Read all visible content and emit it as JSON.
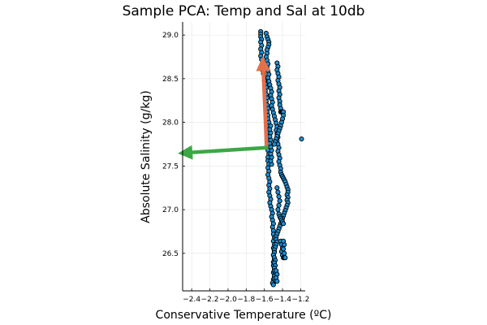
{
  "chart_data": {
    "type": "scatter",
    "title": "Sample PCA: Temp and Sal at 10db",
    "xlabel": "Conservative Temperature (ºC)",
    "ylabel": "Absolute Salinity (g/kg)",
    "xlim": [
      -2.5,
      -1.15
    ],
    "ylim": [
      26.07,
      29.15
    ],
    "xticks": [
      -2.4,
      -2.2,
      -2.0,
      -1.8,
      -1.6,
      -1.4,
      -1.2
    ],
    "xtick_labels": [
      "−2.4",
      "−2.2",
      "−2.0",
      "−1.8",
      "−1.6",
      "−1.4",
      "−1.2"
    ],
    "yticks": [
      26.5,
      27.0,
      27.5,
      28.0,
      28.5,
      29.0
    ],
    "ytick_labels": [
      "26.5",
      "27.0",
      "27.5",
      "28.0",
      "28.5",
      "29.0"
    ],
    "grid": true,
    "legend": false,
    "colors": {
      "points": "#1f8fd6",
      "pc1": "#e2704a",
      "pc2": "#3ca745",
      "grid": "#e6e6e6"
    },
    "points": [
      [
        -1.64,
        29.04
      ],
      [
        -1.64,
        29.01
      ],
      [
        -1.64,
        28.98
      ],
      [
        -1.63,
        28.95
      ],
      [
        -1.64,
        28.92
      ],
      [
        -1.63,
        28.88
      ],
      [
        -1.64,
        28.84
      ],
      [
        -1.63,
        28.8
      ],
      [
        -1.64,
        28.76
      ],
      [
        -1.63,
        28.72
      ],
      [
        -1.62,
        28.68
      ],
      [
        -1.63,
        28.64
      ],
      [
        -1.62,
        28.6
      ],
      [
        -1.61,
        28.56
      ],
      [
        -1.6,
        28.52
      ],
      [
        -1.6,
        28.48
      ],
      [
        -1.59,
        28.44
      ],
      [
        -1.58,
        28.4
      ],
      [
        -1.59,
        28.36
      ],
      [
        -1.58,
        28.32
      ],
      [
        -1.57,
        28.28
      ],
      [
        -1.58,
        28.24
      ],
      [
        -1.57,
        28.2
      ],
      [
        -1.56,
        28.16
      ],
      [
        -1.57,
        28.12
      ],
      [
        -1.56,
        28.08
      ],
      [
        -1.56,
        28.04
      ],
      [
        -1.55,
        28.0
      ],
      [
        -1.56,
        27.96
      ],
      [
        -1.55,
        27.92
      ],
      [
        -1.55,
        27.88
      ],
      [
        -1.56,
        27.84
      ],
      [
        -1.55,
        27.8
      ],
      [
        -1.56,
        27.76
      ],
      [
        -1.55,
        27.72
      ],
      [
        -1.56,
        27.68
      ],
      [
        -1.55,
        27.64
      ],
      [
        -1.56,
        27.6
      ],
      [
        -1.56,
        27.56
      ],
      [
        -1.55,
        27.52
      ],
      [
        -1.56,
        27.48
      ],
      [
        -1.55,
        27.44
      ],
      [
        -1.56,
        27.4
      ],
      [
        -1.55,
        27.36
      ],
      [
        -1.54,
        27.32
      ],
      [
        -1.55,
        27.28
      ],
      [
        -1.54,
        27.24
      ],
      [
        -1.55,
        27.2
      ],
      [
        -1.54,
        27.16
      ],
      [
        -1.53,
        27.12
      ],
      [
        -1.54,
        27.08
      ],
      [
        -1.53,
        27.04
      ],
      [
        -1.52,
        27.0
      ],
      [
        -1.51,
        26.96
      ],
      [
        -1.52,
        26.92
      ],
      [
        -1.51,
        26.88
      ],
      [
        -1.5,
        26.84
      ],
      [
        -1.51,
        26.8
      ],
      [
        -1.5,
        26.76
      ],
      [
        -1.5,
        26.72
      ],
      [
        -1.49,
        26.68
      ],
      [
        -1.5,
        26.64
      ],
      [
        -1.49,
        26.6
      ],
      [
        -1.5,
        26.56
      ],
      [
        -1.49,
        26.52
      ],
      [
        -1.5,
        26.48
      ],
      [
        -1.49,
        26.44
      ],
      [
        -1.5,
        26.4
      ],
      [
        -1.5,
        26.36
      ],
      [
        -1.49,
        26.32
      ],
      [
        -1.5,
        26.28
      ],
      [
        -1.49,
        26.24
      ],
      [
        -1.5,
        26.2
      ],
      [
        -1.58,
        29.02
      ],
      [
        -1.57,
        28.98
      ],
      [
        -1.56,
        28.95
      ],
      [
        -1.55,
        28.92
      ],
      [
        -1.55,
        28.89
      ],
      [
        -1.56,
        28.86
      ],
      [
        -1.57,
        28.83
      ],
      [
        -1.57,
        28.79
      ],
      [
        -1.58,
        28.75
      ],
      [
        -1.57,
        28.71
      ],
      [
        -1.56,
        28.67
      ],
      [
        -1.57,
        28.63
      ],
      [
        -1.56,
        28.59
      ],
      [
        -1.55,
        28.55
      ],
      [
        -1.56,
        28.51
      ],
      [
        -1.55,
        28.47
      ],
      [
        -1.54,
        28.43
      ],
      [
        -1.53,
        28.39
      ],
      [
        -1.52,
        28.35
      ],
      [
        -1.53,
        28.31
      ],
      [
        -1.52,
        28.27
      ],
      [
        -1.51,
        28.23
      ],
      [
        -1.52,
        28.19
      ],
      [
        -1.51,
        28.15
      ],
      [
        -1.5,
        28.11
      ],
      [
        -1.49,
        28.07
      ],
      [
        -1.48,
        28.03
      ],
      [
        -1.47,
        27.99
      ],
      [
        -1.46,
        27.95
      ],
      [
        -1.47,
        27.91
      ],
      [
        -1.46,
        27.87
      ],
      [
        -1.45,
        27.83
      ],
      [
        -1.46,
        27.79
      ],
      [
        -1.45,
        27.75
      ],
      [
        -1.44,
        27.71
      ],
      [
        -1.45,
        27.67
      ],
      [
        -1.44,
        27.63
      ],
      [
        -1.43,
        27.59
      ],
      [
        -1.44,
        27.55
      ],
      [
        -1.43,
        27.51
      ],
      [
        -1.42,
        27.47
      ],
      [
        -1.42,
        27.43
      ],
      [
        -1.41,
        27.4
      ],
      [
        -1.4,
        27.38
      ],
      [
        -1.39,
        27.36
      ],
      [
        -1.38,
        27.34
      ],
      [
        -1.37,
        27.32
      ],
      [
        -1.36,
        27.29
      ],
      [
        -1.35,
        27.26
      ],
      [
        -1.34,
        27.23
      ],
      [
        -1.34,
        27.2
      ],
      [
        -1.35,
        27.17
      ],
      [
        -1.34,
        27.14
      ],
      [
        -1.35,
        27.11
      ],
      [
        -1.34,
        27.08
      ],
      [
        -1.35,
        27.05
      ],
      [
        -1.36,
        27.02
      ],
      [
        -1.37,
        26.99
      ],
      [
        -1.38,
        26.96
      ],
      [
        -1.39,
        26.93
      ],
      [
        -1.4,
        26.9
      ],
      [
        -1.41,
        26.87
      ],
      [
        -1.42,
        26.84
      ],
      [
        -1.43,
        26.81
      ],
      [
        -1.44,
        26.78
      ],
      [
        -1.45,
        26.75
      ],
      [
        -1.46,
        26.72
      ],
      [
        -1.47,
        26.69
      ],
      [
        -1.47,
        26.66
      ],
      [
        -1.46,
        26.63
      ],
      [
        -1.47,
        26.6
      ],
      [
        -1.48,
        26.57
      ],
      [
        -1.49,
        26.54
      ],
      [
        -1.49,
        26.51
      ],
      [
        -1.5,
        26.48
      ],
      [
        -1.49,
        26.45
      ],
      [
        -1.48,
        26.42
      ],
      [
        -1.49,
        26.39
      ],
      [
        -1.48,
        26.36
      ],
      [
        -1.49,
        26.33
      ],
      [
        -1.49,
        26.3
      ],
      [
        -1.48,
        26.27
      ],
      [
        -1.49,
        26.24
      ],
      [
        -1.49,
        26.21
      ],
      [
        -1.48,
        26.18
      ],
      [
        -1.46,
        28.68
      ],
      [
        -1.45,
        28.64
      ],
      [
        -1.46,
        28.6
      ],
      [
        -1.45,
        28.56
      ],
      [
        -1.44,
        28.52
      ],
      [
        -1.45,
        28.48
      ],
      [
        -1.44,
        28.44
      ],
      [
        -1.43,
        28.4
      ],
      [
        -1.44,
        28.36
      ],
      [
        -1.43,
        28.32
      ],
      [
        -1.44,
        28.28
      ],
      [
        -1.43,
        28.24
      ],
      [
        -1.43,
        28.2
      ],
      [
        -1.42,
        28.16
      ],
      [
        -1.42,
        28.12
      ],
      [
        -1.41,
        28.12
      ],
      [
        -1.4,
        28.12
      ],
      [
        -1.39,
        28.12
      ],
      [
        -1.39,
        28.08
      ],
      [
        -1.4,
        28.04
      ],
      [
        -1.41,
        28.0
      ],
      [
        -1.42,
        27.96
      ],
      [
        -1.43,
        27.93
      ],
      [
        -1.44,
        27.9
      ],
      [
        -1.45,
        27.87
      ],
      [
        -1.46,
        27.84
      ],
      [
        -1.47,
        27.81
      ],
      [
        -1.48,
        27.78
      ],
      [
        -1.49,
        27.75
      ],
      [
        -1.42,
        26.64
      ],
      [
        -1.41,
        26.6
      ],
      [
        -1.4,
        26.56
      ],
      [
        -1.41,
        26.52
      ],
      [
        -1.4,
        26.48
      ],
      [
        -1.39,
        26.45
      ],
      [
        -1.38,
        26.45
      ],
      [
        -1.37,
        26.45
      ],
      [
        -1.38,
        26.5
      ],
      [
        -1.39,
        26.55
      ],
      [
        -1.38,
        26.6
      ],
      [
        -1.39,
        26.64
      ],
      [
        -1.44,
        26.95
      ],
      [
        -1.43,
        26.92
      ],
      [
        -1.42,
        26.9
      ],
      [
        -1.41,
        26.88
      ],
      [
        -1.4,
        26.86
      ],
      [
        -1.39,
        26.84
      ],
      [
        -1.45,
        27.0
      ],
      [
        -1.44,
        27.05
      ],
      [
        -1.43,
        27.1
      ],
      [
        -1.44,
        27.15
      ],
      [
        -1.45,
        27.2
      ],
      [
        -1.46,
        27.25
      ],
      [
        -1.52,
        27.52
      ],
      [
        -1.53,
        27.56
      ],
      [
        -1.52,
        27.6
      ],
      [
        -1.53,
        27.64
      ],
      [
        -1.52,
        27.68
      ],
      [
        -1.53,
        27.72
      ],
      [
        -1.54,
        27.76
      ],
      [
        -1.53,
        27.8
      ],
      [
        -1.54,
        27.84
      ],
      [
        -1.53,
        27.88
      ],
      [
        -1.54,
        27.92
      ],
      [
        -1.53,
        27.96
      ],
      [
        -1.47,
        26.3
      ],
      [
        -1.46,
        26.26
      ],
      [
        -1.47,
        26.22
      ],
      [
        -1.46,
        26.18
      ],
      [
        -1.51,
        26.16
      ],
      [
        -1.5,
        26.14
      ],
      [
        -1.19,
        27.81
      ]
    ],
    "arrows": [
      {
        "name": "pc1",
        "from": [
          -1.575,
          27.71
        ],
        "to": [
          -1.615,
          28.68
        ]
      },
      {
        "name": "pc2",
        "from": [
          -1.575,
          27.71
        ],
        "to": [
          -2.48,
          27.65
        ]
      }
    ]
  }
}
